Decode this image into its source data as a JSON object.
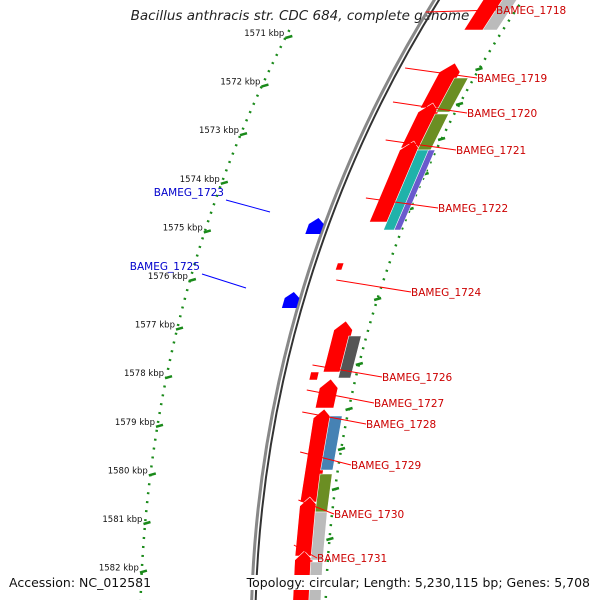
{
  "header": {
    "title": "Bacillus anthracis str. CDC 684, complete genome"
  },
  "footer": {
    "accession": "Accession: NC_012581",
    "summary": "Topology: circular; Length: 5,230,115 bp; Genes: 5,708"
  },
  "ruler_ticks": [
    "1571 kbp",
    "1572 kbp",
    "1573 kbp",
    "1574 kbp",
    "1575 kbp",
    "1576 kbp",
    "1577 kbp",
    "1578 kbp",
    "1579 kbp",
    "1580 kbp",
    "1581 kbp",
    "1582 kbp"
  ],
  "gene_labels_right": [
    "BAMEG_1718",
    "BAMEG_1719",
    "BAMEG_1720",
    "BAMEG_1721",
    "BAMEG_1722",
    "BAMEG_1724",
    "BAMEG_1726",
    "BAMEG_1727",
    "BAMEG_1728",
    "BAMEG_1729",
    "BAMEG_1730",
    "BAMEG_1731"
  ],
  "gene_labels_left": [
    "BAMEG_1723",
    "BAMEG_1725"
  ],
  "colors": {
    "forward_gene": "#ff0000",
    "reverse_gene": "#0000ff",
    "label_forward": "#cc0000",
    "label_reverse": "#0000cc",
    "tick_minor": "#1a8a1a",
    "olive": "#6b8e23",
    "steel": "#4682b4",
    "dark_gray": "#555555",
    "light_gray": "#bbbbbb",
    "cyan": "#20b2aa",
    "purple": "#6a5acd"
  }
}
